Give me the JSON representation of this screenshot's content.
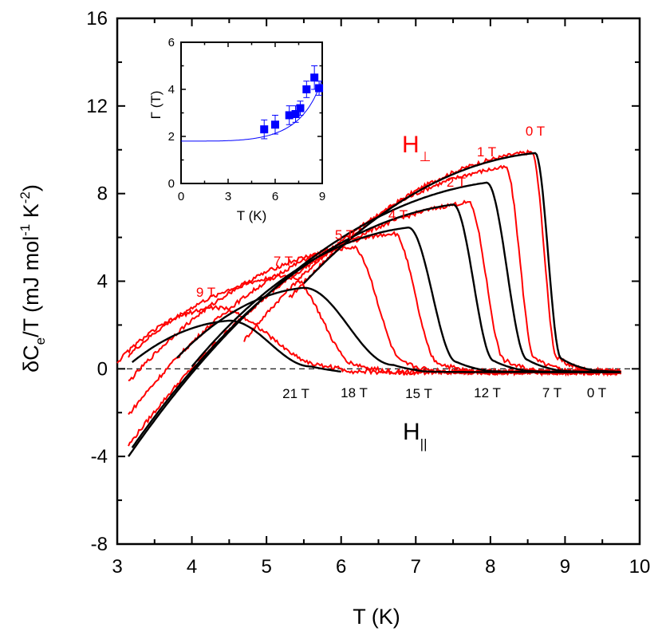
{
  "chart_data": {
    "type": "line",
    "xlabel": "T (K)",
    "ylabel_parts": [
      "δC",
      "e",
      "/T (mJ mol",
      "-1",
      " K",
      "-2",
      ")"
    ],
    "xlim": [
      3,
      10
    ],
    "ylim": [
      -8,
      16
    ],
    "xticks": [
      "3",
      "4",
      "5",
      "6",
      "7",
      "8",
      "9",
      "10"
    ],
    "yticks": [
      "-8",
      "-4",
      "0",
      "4",
      "8",
      "12",
      "16"
    ],
    "colors": {
      "perp": "#ff0000",
      "par": "#000000",
      "inset": "#0000ff"
    },
    "group_labels": {
      "perp": {
        "main": "H",
        "sub": "⊥"
      },
      "par": {
        "main": "H",
        "sub": "||"
      }
    },
    "series_perp": [
      {
        "name": "0 T",
        "peak_T": 8.55,
        "peak": 9.9,
        "low_T": 5.3,
        "low_val": 3.2,
        "tc": 8.9,
        "end": 9.75
      },
      {
        "name": "1 T",
        "peak_T": 8.2,
        "peak": 9.2,
        "low_T": 4.7,
        "low_val": 1.3,
        "tc": 8.6,
        "end": 9.75
      },
      {
        "name": "2 T",
        "peak_T": 7.7,
        "peak": 7.6,
        "low_T": 3.15,
        "low_val": -3.5,
        "tc": 8.2,
        "end": 9.75
      },
      {
        "name": "4 T",
        "peak_T": 6.7,
        "peak": 6.2,
        "low_T": 3.15,
        "low_val": -2.1,
        "tc": 7.3,
        "end": 9.75
      },
      {
        "name": "5 T",
        "peak_T": 6.15,
        "peak": 5.55,
        "low_T": 3.15,
        "low_val": -0.6,
        "tc": 6.85,
        "end": 9.75
      },
      {
        "name": "7 T",
        "peak_T": 5.3,
        "peak": 4.25,
        "low_T": 3.15,
        "low_val": 0.6,
        "tc": 6.2,
        "end": 9.75
      },
      {
        "name": "9 T",
        "peak_T": 4.3,
        "peak": 2.8,
        "low_T": 3.0,
        "low_val": 0.3,
        "tc": 5.8,
        "end": 9.75
      }
    ],
    "series_par": [
      {
        "name": "0 T",
        "peak_T": 8.6,
        "peak": 9.85,
        "low_T": 5.5,
        "low_val": 3.9,
        "tc": 8.95,
        "end": 9.75
      },
      {
        "name": "7 T",
        "peak_T": 7.95,
        "peak": 8.5,
        "low_T": 3.15,
        "low_val": -4.0,
        "tc": 8.5,
        "end": 9.75
      },
      {
        "name": "12 T",
        "peak_T": 7.5,
        "peak": 7.5,
        "low_T": 3.2,
        "low_val": -3.6,
        "tc": 8.05,
        "end": 9.75
      },
      {
        "name": "15 T",
        "peak_T": 6.9,
        "peak": 6.45,
        "low_T": 4.0,
        "low_val": 0.1,
        "tc": 7.55,
        "end": 9.75
      },
      {
        "name": "18 T",
        "peak_T": 5.5,
        "peak": 3.7,
        "low_T": 3.8,
        "low_val": 0.5,
        "tc": 6.7,
        "end": 9.75
      },
      {
        "name": "21 T",
        "peak_T": 4.5,
        "peak": 2.2,
        "low_T": 3.2,
        "low_val": 0.3,
        "tc": 5.6,
        "end": 6.0
      }
    ],
    "dashed_zero_line": true,
    "inset": {
      "xlabel": "T (K)",
      "ylabel": "Γ (T)",
      "xlim": [
        0,
        9
      ],
      "ylim": [
        0,
        6
      ],
      "xticks": [
        "0",
        "3",
        "6",
        "9"
      ],
      "yticks": [
        "0",
        "2",
        "4",
        "6"
      ],
      "points": [
        {
          "x": 5.3,
          "y": 2.3,
          "err": 0.4
        },
        {
          "x": 6.0,
          "y": 2.5,
          "err": 0.4
        },
        {
          "x": 6.9,
          "y": 2.9,
          "err": 0.4
        },
        {
          "x": 7.3,
          "y": 2.95,
          "err": 0.35
        },
        {
          "x": 7.6,
          "y": 3.2,
          "err": 0.3
        },
        {
          "x": 8.0,
          "y": 4.0,
          "err": 0.35
        },
        {
          "x": 8.5,
          "y": 4.5,
          "err": 0.5
        },
        {
          "x": 8.8,
          "y": 4.05,
          "err": 0.3
        }
      ],
      "fit": {
        "a": 1.8,
        "b": 2.0,
        "tc": 9.5,
        "n": 4
      }
    }
  }
}
